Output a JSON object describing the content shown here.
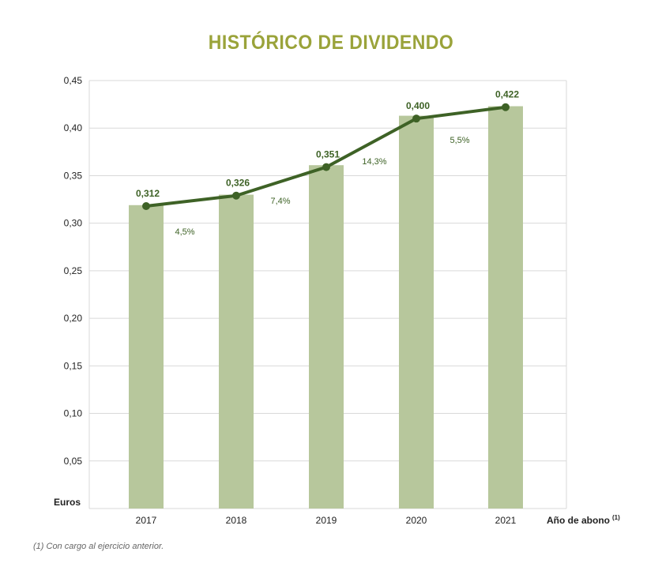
{
  "chart_data": {
    "type": "bar",
    "title": "HISTÓRICO DE DIVIDENDO",
    "ylabel": "Euros",
    "xlabel": "Año de abono",
    "xlabel_superscript": "(1)",
    "categories": [
      "2017",
      "2018",
      "2019",
      "2020",
      "2021"
    ],
    "bar_values": [
      0.319,
      0.33,
      0.361,
      0.413,
      0.423
    ],
    "series": [
      {
        "values": [
          0.312,
          0.326,
          0.351,
          0.4,
          0.422
        ],
        "point_values": [
          0.318,
          0.329,
          0.359,
          0.41,
          0.422
        ],
        "labels": [
          "0,312",
          "0,326",
          "0,351",
          "0,400",
          "0,422"
        ]
      }
    ],
    "growth_labels": [
      "4,5%",
      "7,4%",
      "14,3%",
      "5,5%"
    ],
    "ylim": [
      0,
      0.45
    ],
    "yticks": [
      "0,05",
      "0,10",
      "0,15",
      "0,20",
      "0,25",
      "0,30",
      "0,35",
      "0,40",
      "0,45"
    ],
    "grid": true,
    "colors": {
      "bar": "#b7c79c",
      "line": "#3e6226",
      "title": "#9aa33a",
      "grid": "#d9d9d9"
    }
  },
  "footnote": "(1) Con cargo al ejercicio anterior."
}
